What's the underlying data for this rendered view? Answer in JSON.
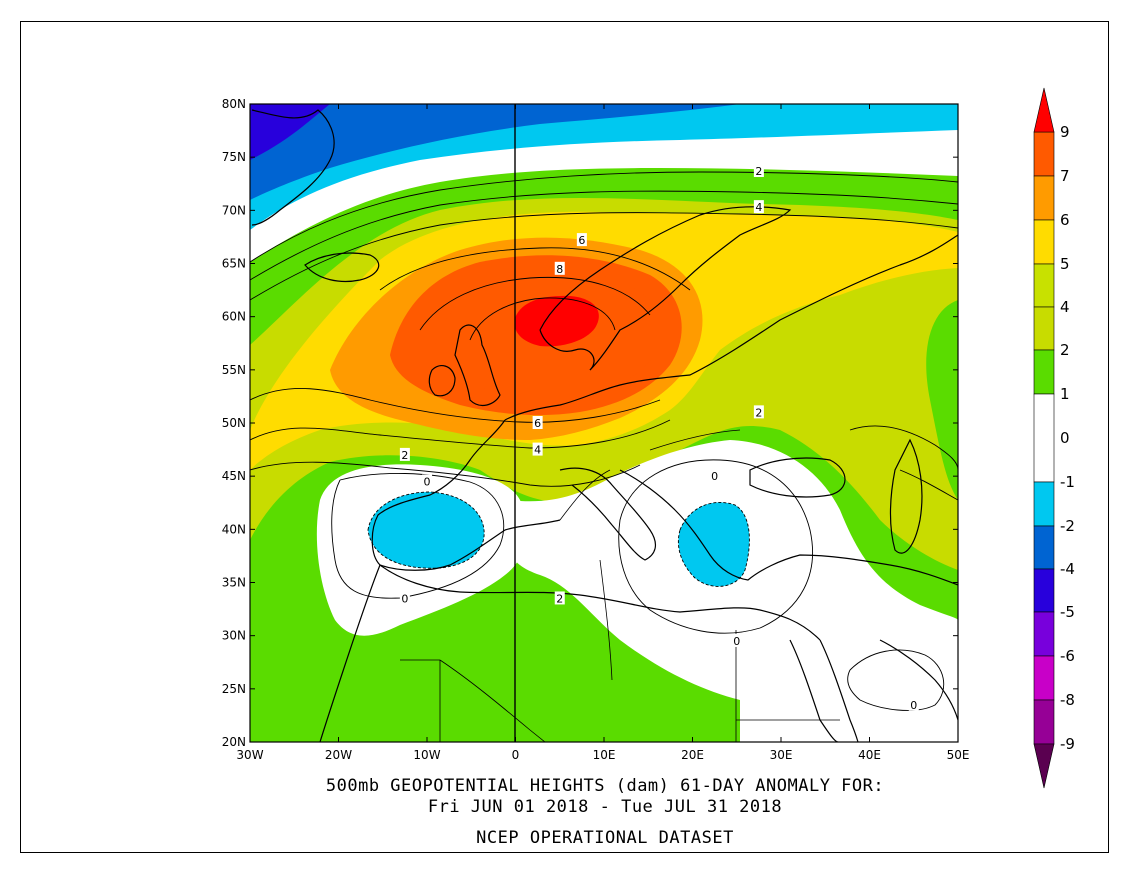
{
  "title": {
    "line1": "500mb GEOPOTENTIAL HEIGHTS (dam)   61-DAY ANOMALY FOR:",
    "line2": "Fri JUN 01 2018 - Tue JUL 31 2018",
    "line3": "NCEP OPERATIONAL DATASET"
  },
  "axes": {
    "lon_ticks": [
      "30W",
      "20W",
      "10W",
      "0",
      "10E",
      "20E",
      "30E",
      "40E",
      "50E"
    ],
    "lat_ticks": [
      "80N",
      "75N",
      "70N",
      "65N",
      "60N",
      "55N",
      "50N",
      "45N",
      "40N",
      "35N",
      "30N",
      "25N",
      "20N"
    ],
    "lon_range": [
      -30,
      50
    ],
    "lat_range": [
      20,
      80
    ]
  },
  "colorbar": {
    "labels": [
      "9",
      "7",
      "6",
      "5",
      "4",
      "2",
      "1",
      "0",
      "-1",
      "-2",
      "-4",
      "-5",
      "-6",
      "-8",
      "-9"
    ],
    "colors": {
      "gt9": "#ff0000",
      "7_9": "#ff5a00",
      "6_7": "#ff9b00",
      "5_6": "#ffdc00",
      "4_5": "#c8e100",
      "2_4": "#c8dc00",
      "1_2": "#5adc00",
      "-1_1": "#ffffff",
      "-2_-1": "#00c8f0",
      "-4_-2": "#0064d2",
      "-5_-4": "#2800dc",
      "-6_-5": "#7800dc",
      "-8_-6": "#c800c8",
      "-9_-8": "#960096",
      "lt-9": "#5a0050"
    }
  },
  "contour_labels": [
    {
      "text": "2",
      "lon": 27.5,
      "lat": 73.7
    },
    {
      "text": "4",
      "lon": 27.5,
      "lat": 70.3
    },
    {
      "text": "6",
      "lon": 7.5,
      "lat": 67.2
    },
    {
      "text": "8",
      "lon": 5.0,
      "lat": 64.5
    },
    {
      "text": "2",
      "lon": 27.5,
      "lat": 51.0
    },
    {
      "text": "6",
      "lon": 2.5,
      "lat": 50.0
    },
    {
      "text": "4",
      "lon": 2.5,
      "lat": 47.5
    },
    {
      "text": "2",
      "lon": -12.5,
      "lat": 47.0
    },
    {
      "text": "0",
      "lon": -10.0,
      "lat": 44.5
    },
    {
      "text": "0",
      "lon": 22.5,
      "lat": 45.0
    },
    {
      "text": "0",
      "lon": -12.5,
      "lat": 33.5
    },
    {
      "text": "2",
      "lon": 5.0,
      "lat": 33.5
    },
    {
      "text": "0",
      "lon": 25.0,
      "lat": 29.5
    },
    {
      "text": "0",
      "lon": 45.0,
      "lat": 23.5
    }
  ]
}
